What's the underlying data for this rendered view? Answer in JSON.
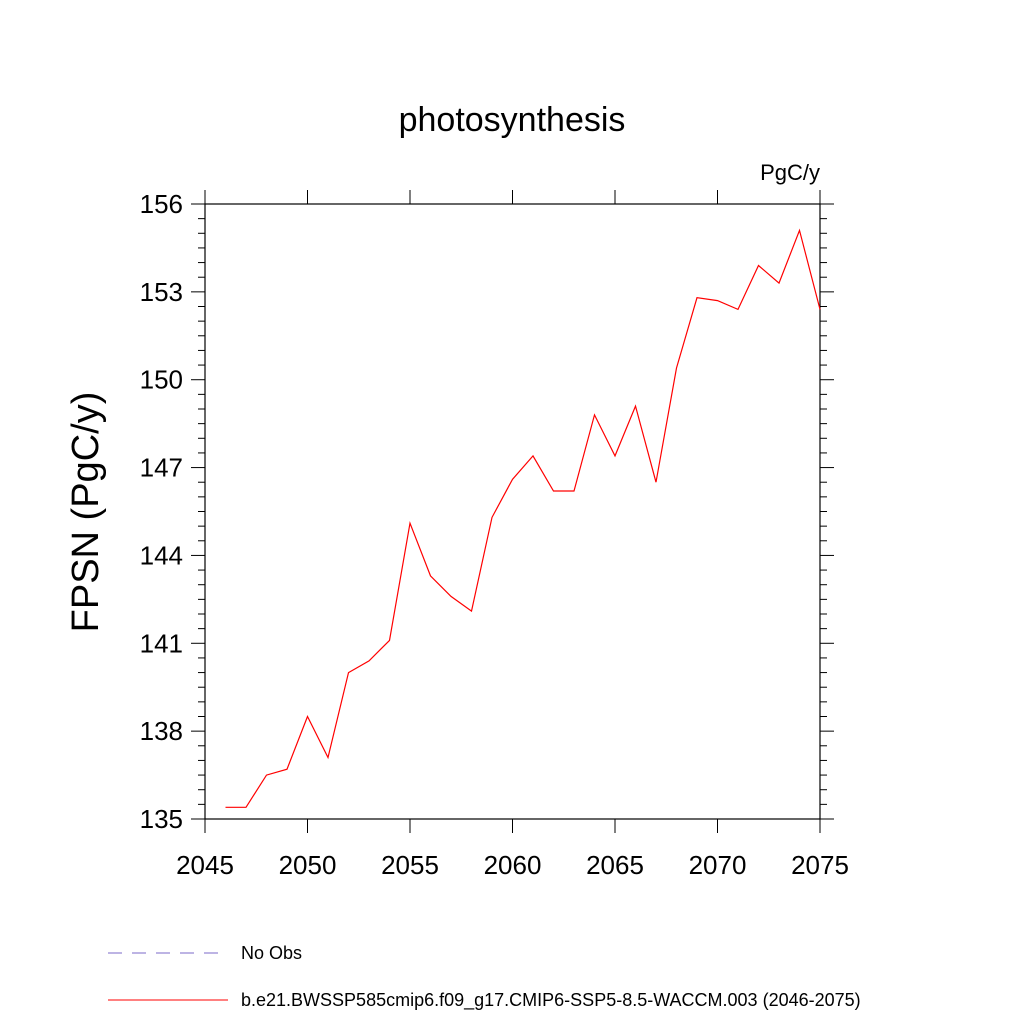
{
  "chart_data": {
    "type": "line",
    "title": "photosynthesis",
    "units": "PgC/y",
    "xlabel": "",
    "ylabel": "FPSN  (PgC/y)",
    "xlim": [
      2045,
      2075
    ],
    "ylim": [
      135,
      156
    ],
    "xticks": [
      2045,
      2050,
      2055,
      2060,
      2065,
      2070,
      2075
    ],
    "yticks": [
      135,
      138,
      141,
      144,
      147,
      150,
      153,
      156
    ],
    "grid": false,
    "legend_position": "bottom",
    "series": [
      {
        "name": "No Obs",
        "color": "#7b68c8",
        "style": "dashed",
        "x": [],
        "values": []
      },
      {
        "name": "b.e21.BWSSP585cmip6.f09_g17.CMIP6-SSP5-8.5-WACCM.003 (2046-2075)",
        "color": "#ff0000",
        "style": "solid",
        "x": [
          2046,
          2047,
          2048,
          2049,
          2050,
          2051,
          2052,
          2053,
          2054,
          2055,
          2056,
          2057,
          2058,
          2059,
          2060,
          2061,
          2062,
          2063,
          2064,
          2065,
          2066,
          2067,
          2068,
          2069,
          2070,
          2071,
          2072,
          2073,
          2074,
          2075
        ],
        "values": [
          135.4,
          135.4,
          136.5,
          136.7,
          138.5,
          137.1,
          140.0,
          140.4,
          141.1,
          145.1,
          143.3,
          142.6,
          142.1,
          145.3,
          146.6,
          147.4,
          146.2,
          146.2,
          148.8,
          147.4,
          149.1,
          146.5,
          150.4,
          152.8,
          152.7,
          152.4,
          153.9,
          153.3,
          155.1,
          152.4
        ]
      }
    ]
  }
}
